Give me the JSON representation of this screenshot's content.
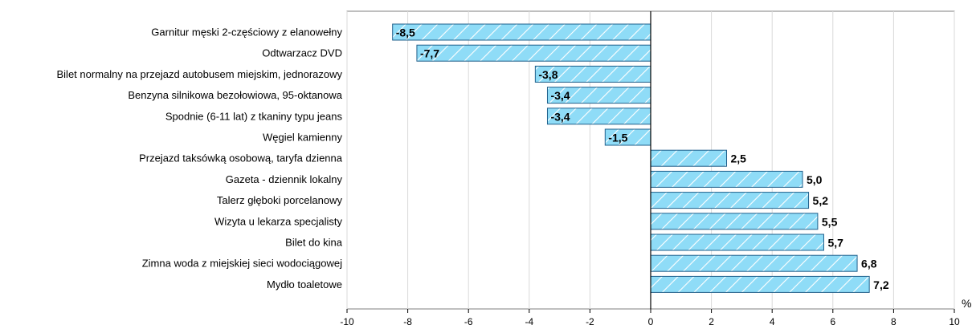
{
  "colors": {
    "bar_fill": "#8fdcf7",
    "bar_stroke": "#1f5f8b",
    "hatch": "#ffffff",
    "grid": "#d9d9d9",
    "axis": "#000000"
  },
  "chart_data": {
    "type": "bar",
    "orientation": "horizontal",
    "categories": [
      "Garnitur męski 2-częściowy z elanowełny",
      "Odtwarzacz DVD",
      "Bilet normalny na przejazd autobusem miejskim, jednorazowy",
      "Benzyna silnikowa bezołowiowa, 95-oktanowa",
      "Spodnie (6-11 lat) z tkaniny typu jeans",
      "Węgiel kamienny",
      "Przejazd taksówką osobową, taryfa dzienna",
      "Gazeta - dziennik lokalny",
      "Talerz głęboki porcelanowy",
      "Wizyta u lekarza specjalisty",
      "Bilet do kina",
      "Zimna woda z miejskiej sieci wodociągowej",
      "Mydło toaletowe"
    ],
    "values": [
      -8.5,
      -7.7,
      -3.8,
      -3.4,
      -3.4,
      -1.5,
      2.5,
      5.0,
      5.2,
      5.5,
      5.7,
      6.8,
      7.2
    ],
    "value_labels": [
      "-8,5",
      "-7,7",
      "-3,8",
      "-3,4",
      "-3,4",
      "-1,5",
      "2,5",
      "5,0",
      "5,2",
      "5,5",
      "5,7",
      "6,8",
      "7,2"
    ],
    "xlim": [
      -10,
      10
    ],
    "xticks": [
      -10,
      -8,
      -6,
      -4,
      -2,
      0,
      2,
      4,
      6,
      8,
      10
    ],
    "unit_label": "%",
    "grid": true
  }
}
